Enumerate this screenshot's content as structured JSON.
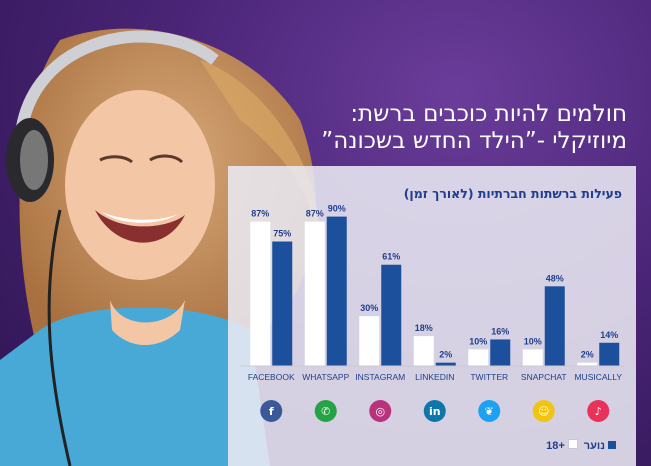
{
  "headline": {
    "line1": "חולמים להיות כוכבים ברשת:",
    "line2": "מיוזיקלי -”הילד החדש בשכונה”"
  },
  "chart_data": {
    "type": "bar",
    "title": "פעילות ברשתות חברתיות (לאורך זמן)",
    "categories": [
      "FACEBOOK",
      "WHATSAPP",
      "INSTAGRAM",
      "LINKEDIN",
      "TWITTER",
      "SNAPCHAT",
      "MUSICALLY"
    ],
    "series": [
      {
        "name": "+18",
        "values": [
          87,
          87,
          30,
          18,
          10,
          10,
          2
        ],
        "color": "#ffffff"
      },
      {
        "name": "נוער",
        "values": [
          75,
          90,
          61,
          2,
          16,
          48,
          14
        ],
        "color": "#1c4f9c"
      }
    ],
    "value_labels": [
      [
        "87%",
        "87%",
        "30%",
        "18%",
        "10%",
        "10%",
        "2%"
      ],
      [
        "75%",
        "90%",
        "61%",
        "2%",
        "16%",
        "48%",
        "14%"
      ]
    ],
    "ylim": [
      0,
      100
    ],
    "grid": false,
    "legend": "bottom-right",
    "icons": [
      {
        "name": "facebook-icon",
        "color": "#3b5998",
        "glyph": "f"
      },
      {
        "name": "whatsapp-icon",
        "color": "#25a244",
        "glyph": "✆"
      },
      {
        "name": "instagram-icon",
        "color": "#b8327e",
        "glyph": "◎"
      },
      {
        "name": "linkedin-icon",
        "color": "#0e76a8",
        "glyph": "in"
      },
      {
        "name": "twitter-icon",
        "color": "#1da1f2",
        "glyph": "❦"
      },
      {
        "name": "snapchat-icon",
        "color": "#f1c40f",
        "glyph": "☺"
      },
      {
        "name": "musically-icon",
        "color": "#e8315b",
        "glyph": "♪"
      }
    ]
  }
}
